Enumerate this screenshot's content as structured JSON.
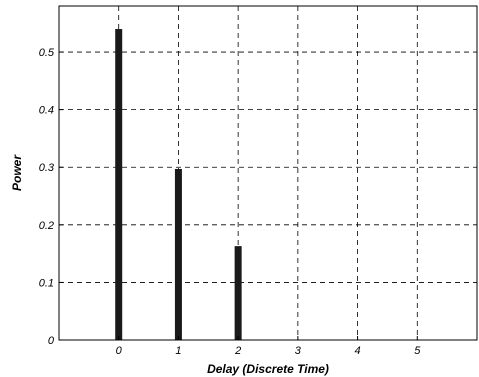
{
  "chart_data": {
    "type": "bar",
    "x": [
      0,
      1,
      2
    ],
    "values": [
      0.54,
      0.297,
      0.163
    ],
    "xlabel": "Delay  (Discrete  Time)",
    "ylabel": "Power",
    "xlim": [
      -1,
      6
    ],
    "ylim": [
      0,
      0.58
    ],
    "xticks": [
      0,
      1,
      2,
      3,
      4,
      5
    ],
    "xtick_labels": [
      "0",
      "1",
      "2",
      "3",
      "4",
      "5"
    ],
    "yticks": [
      0,
      0.1,
      0.2,
      0.3,
      0.4,
      0.5
    ],
    "ytick_labels": [
      "0",
      "0.1",
      "0.2",
      "0.3",
      "0.4",
      "0.5"
    ],
    "grid": true,
    "bar_color": "#1a1a1a"
  }
}
